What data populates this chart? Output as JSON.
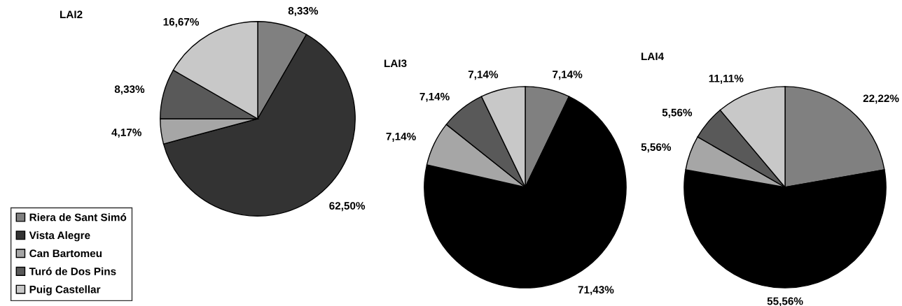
{
  "chart_data": [
    {
      "type": "pie",
      "title": "LAI2",
      "categories": [
        "Riera de Sant Simó",
        "Vista Alegre",
        "Can Bartomeu",
        "Turó de Dos Pins",
        "Puig Castellar"
      ],
      "values": [
        8.33,
        62.5,
        4.17,
        8.33,
        16.67
      ],
      "value_labels": [
        "8,33%",
        "62,50%",
        "4,17%",
        "8,33%",
        "16,67%"
      ],
      "colors": [
        "#808080",
        "#333333",
        "#a6a6a6",
        "#595959",
        "#c8c8c8"
      ],
      "legend": "bottom left"
    },
    {
      "type": "pie",
      "title": "LAI3",
      "categories": [
        null,
        null,
        null,
        null,
        null
      ],
      "values": [
        7.14,
        71.43,
        7.14,
        7.14,
        7.14
      ],
      "value_labels": [
        "7,14%",
        "71,43%",
        "7,14%",
        "7,14%",
        "7,14%"
      ],
      "colors": [
        "#808080",
        "#000000",
        "#a6a6a6",
        "#595959",
        "#c8c8c8"
      ]
    },
    {
      "type": "pie",
      "title": "LAI4",
      "categories": [
        null,
        null,
        null,
        null,
        null
      ],
      "values": [
        22.22,
        55.56,
        5.56,
        5.56,
        11.11
      ],
      "value_labels": [
        "22,22%",
        "55,56%",
        "5,56%",
        "5,56%",
        "11,11%"
      ],
      "colors": [
        "#808080",
        "#000000",
        "#a6a6a6",
        "#595959",
        "#c8c8c8"
      ]
    }
  ]
}
